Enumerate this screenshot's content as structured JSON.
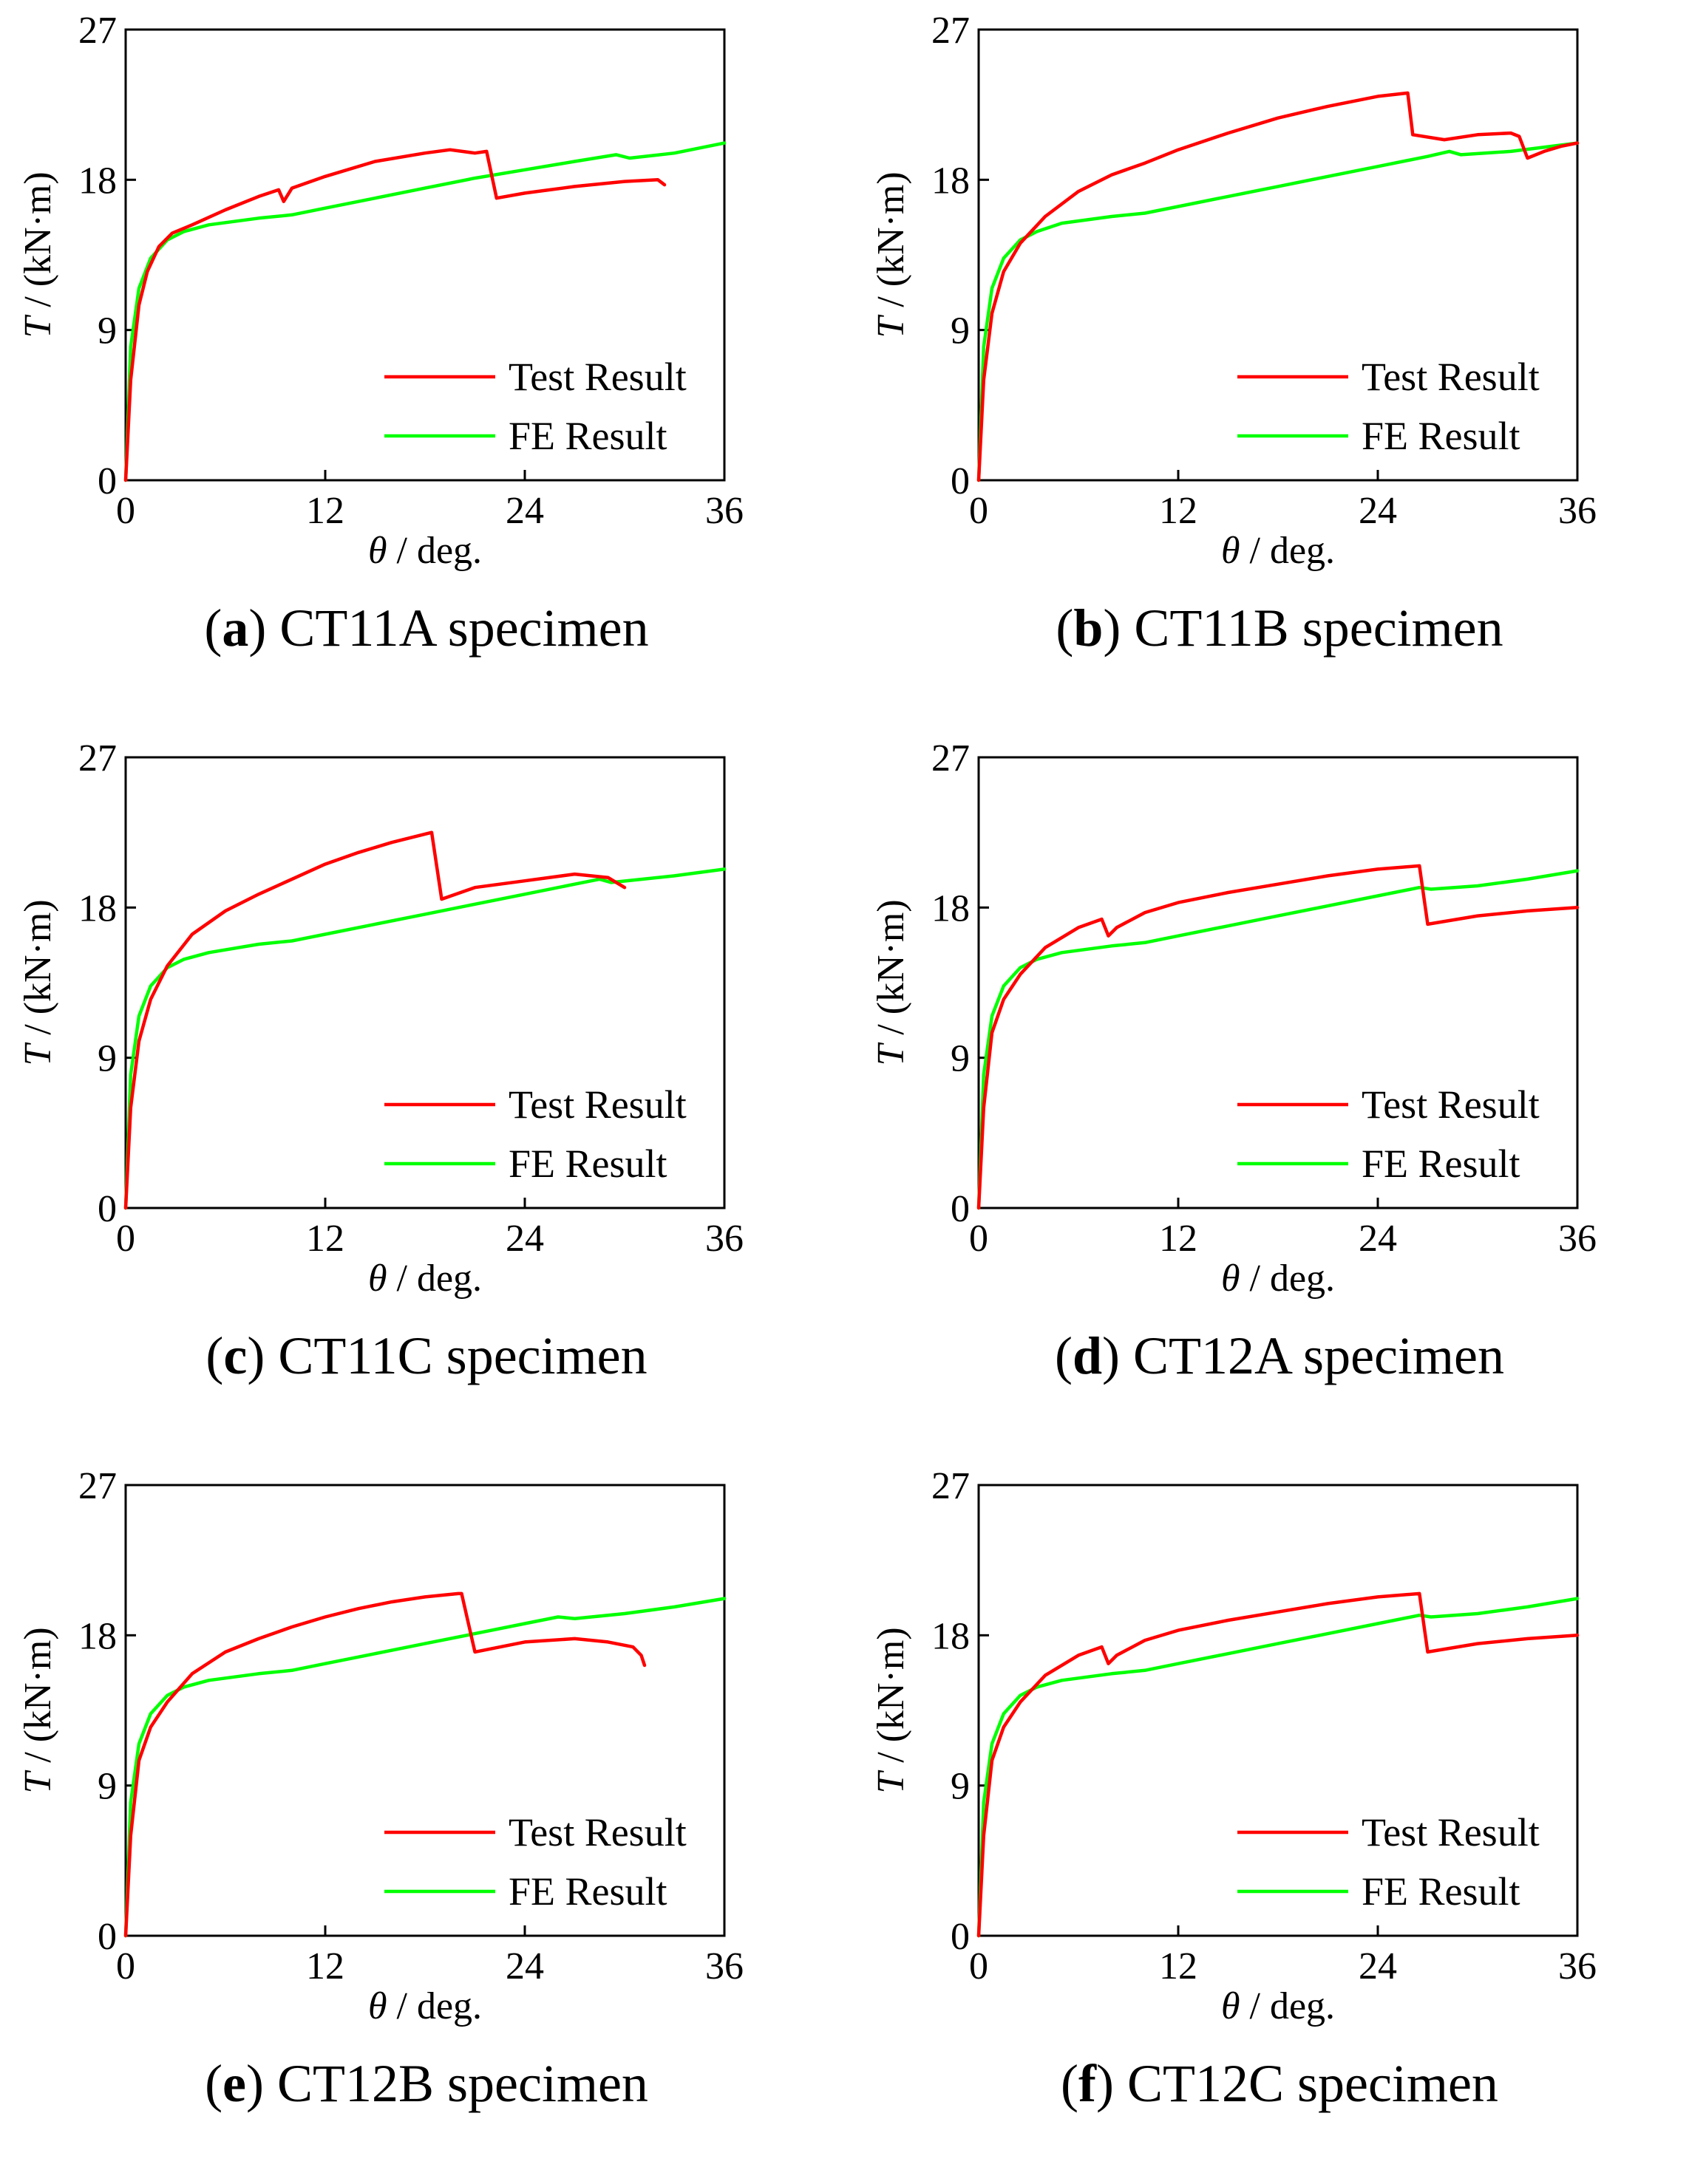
{
  "chart_data": [
    {
      "type": "line",
      "panel_letter": "a",
      "caption_text": "CT11A specimen",
      "xlabel_sym": "θ",
      "xlabel_rest": "/ deg.",
      "ylabel_sym": "T",
      "ylabel_rest": "/ (kN·m)",
      "xlim": [
        0,
        36
      ],
      "ylim": [
        0,
        27
      ],
      "xticks": [
        "0",
        "12",
        "24",
        "36"
      ],
      "yticks": [
        "0",
        "9",
        "18",
        "27"
      ],
      "legend_position": "bottom-right",
      "series": [
        {
          "name": "Test Result",
          "color": "#ff0000",
          "x": [
            0,
            0.3,
            0.8,
            1.3,
            2,
            2.8,
            4,
            6,
            8,
            9.2,
            9.5,
            10,
            12,
            15,
            18,
            19.5,
            21,
            21.7,
            22.3,
            24,
            27,
            30,
            32,
            32.4
          ],
          "y": [
            0,
            6,
            10.5,
            12.5,
            14,
            14.8,
            15.3,
            16.2,
            17,
            17.4,
            16.7,
            17.5,
            18.2,
            19.1,
            19.6,
            19.8,
            19.6,
            19.7,
            16.9,
            17.2,
            17.6,
            17.9,
            18,
            17.7
          ]
        },
        {
          "name": "FE Result",
          "color": "#00ff00",
          "x": [
            0,
            0.3,
            0.8,
            1.5,
            2.5,
            3.5,
            5,
            8,
            10,
            12,
            15,
            18,
            21,
            24,
            27,
            29.5,
            30.3,
            33,
            36
          ],
          "y": [
            0,
            8,
            11.5,
            13.3,
            14.4,
            14.9,
            15.3,
            15.7,
            15.9,
            16.3,
            16.9,
            17.5,
            18.1,
            18.6,
            19.1,
            19.5,
            19.3,
            19.6,
            20.2
          ]
        }
      ]
    },
    {
      "type": "line",
      "panel_letter": "b",
      "caption_text": "CT11B specimen",
      "xlabel_sym": "θ",
      "xlabel_rest": "/ deg.",
      "ylabel_sym": "T",
      "ylabel_rest": "/ (kN·m)",
      "xlim": [
        0,
        36
      ],
      "ylim": [
        0,
        27
      ],
      "xticks": [
        "0",
        "12",
        "24",
        "36"
      ],
      "yticks": [
        "0",
        "9",
        "18",
        "27"
      ],
      "legend_position": "bottom-right",
      "series": [
        {
          "name": "Test Result",
          "color": "#ff0000",
          "x": [
            0,
            0.3,
            0.8,
            1.5,
            2.5,
            4,
            6,
            8,
            10,
            12,
            15,
            18,
            21,
            24,
            25.8,
            26.1,
            28,
            30,
            32,
            32.5,
            33,
            34,
            35,
            36
          ],
          "y": [
            0,
            6,
            10,
            12.5,
            14.2,
            15.8,
            17.3,
            18.3,
            19,
            19.8,
            20.8,
            21.7,
            22.4,
            23,
            23.2,
            20.7,
            20.4,
            20.7,
            20.8,
            20.6,
            19.3,
            19.7,
            20,
            20.2
          ]
        },
        {
          "name": "FE Result",
          "color": "#00ff00",
          "x": [
            0,
            0.3,
            0.8,
            1.5,
            2.5,
            3.5,
            5,
            8,
            10,
            12,
            15,
            18,
            21,
            24,
            27,
            28.3,
            29,
            32,
            36
          ],
          "y": [
            0,
            8,
            11.5,
            13.3,
            14.4,
            14.9,
            15.4,
            15.8,
            16,
            16.4,
            17,
            17.6,
            18.2,
            18.8,
            19.4,
            19.7,
            19.5,
            19.7,
            20.2
          ]
        }
      ]
    },
    {
      "type": "line",
      "panel_letter": "c",
      "caption_text": "CT11C specimen",
      "xlabel_sym": "θ",
      "xlabel_rest": "/ deg.",
      "ylabel_sym": "T",
      "ylabel_rest": "/ (kN·m)",
      "xlim": [
        0,
        36
      ],
      "ylim": [
        0,
        27
      ],
      "xticks": [
        "0",
        "12",
        "24",
        "36"
      ],
      "yticks": [
        "0",
        "9",
        "18",
        "27"
      ],
      "legend_position": "bottom-right",
      "series": [
        {
          "name": "Test Result",
          "color": "#ff0000",
          "x": [
            0,
            0.3,
            0.8,
            1.5,
            2.5,
            4,
            6,
            8,
            10,
            12,
            14,
            16,
            18,
            18.4,
            19,
            21,
            24,
            27,
            29,
            30
          ],
          "y": [
            0,
            6,
            10,
            12.5,
            14.5,
            16.4,
            17.8,
            18.8,
            19.7,
            20.6,
            21.3,
            21.9,
            22.4,
            22.5,
            18.5,
            19.2,
            19.6,
            20,
            19.8,
            19.2
          ]
        },
        {
          "name": "FE Result",
          "color": "#00ff00",
          "x": [
            0,
            0.3,
            0.8,
            1.5,
            2.5,
            3.5,
            5,
            8,
            10,
            12,
            15,
            18,
            21,
            24,
            27,
            28.5,
            29.2,
            33,
            36
          ],
          "y": [
            0,
            8,
            11.5,
            13.3,
            14.4,
            14.9,
            15.3,
            15.8,
            16,
            16.4,
            17,
            17.6,
            18.2,
            18.8,
            19.4,
            19.7,
            19.5,
            19.9,
            20.3
          ]
        }
      ]
    },
    {
      "type": "line",
      "panel_letter": "d",
      "caption_text": "CT12A specimen",
      "xlabel_sym": "θ",
      "xlabel_rest": "/ deg.",
      "ylabel_sym": "T",
      "ylabel_rest": "/ (kN·m)",
      "xlim": [
        0,
        36
      ],
      "ylim": [
        0,
        27
      ],
      "xticks": [
        "0",
        "12",
        "24",
        "36"
      ],
      "yticks": [
        "0",
        "9",
        "18",
        "27"
      ],
      "legend_position": "bottom-right",
      "series": [
        {
          "name": "Test Result",
          "color": "#ff0000",
          "x": [
            0,
            0.3,
            0.8,
            1.5,
            2.5,
            4,
            6,
            7.4,
            7.8,
            8.3,
            10,
            12,
            15,
            18,
            21,
            24,
            26.5,
            27,
            30,
            33,
            36
          ],
          "y": [
            0,
            6,
            10.5,
            12.5,
            14,
            15.6,
            16.8,
            17.3,
            16.3,
            16.8,
            17.7,
            18.3,
            18.9,
            19.4,
            19.9,
            20.3,
            20.5,
            17,
            17.5,
            17.8,
            18
          ]
        },
        {
          "name": "FE Result",
          "color": "#00ff00",
          "x": [
            0,
            0.3,
            0.8,
            1.5,
            2.5,
            3.5,
            5,
            8,
            10,
            12,
            15,
            18,
            21,
            24,
            26.5,
            27.2,
            30,
            33,
            36
          ],
          "y": [
            0,
            8,
            11.5,
            13.3,
            14.4,
            14.9,
            15.3,
            15.7,
            15.9,
            16.3,
            16.9,
            17.5,
            18.1,
            18.7,
            19.2,
            19.1,
            19.3,
            19.7,
            20.2
          ]
        }
      ]
    },
    {
      "type": "line",
      "panel_letter": "e",
      "caption_text": "CT12B specimen",
      "xlabel_sym": "θ",
      "xlabel_rest": "/ deg.",
      "ylabel_sym": "T",
      "ylabel_rest": "/ (kN·m)",
      "xlim": [
        0,
        36
      ],
      "ylim": [
        0,
        27
      ],
      "xticks": [
        "0",
        "12",
        "24",
        "36"
      ],
      "yticks": [
        "0",
        "9",
        "18",
        "27"
      ],
      "legend_position": "bottom-right",
      "series": [
        {
          "name": "Test Result",
          "color": "#ff0000",
          "x": [
            0,
            0.3,
            0.8,
            1.5,
            2.5,
            4,
            6,
            8,
            10,
            12,
            14,
            16,
            18,
            20,
            20.2,
            21,
            24,
            27,
            29,
            30.5,
            31,
            31.2
          ],
          "y": [
            0,
            6,
            10.5,
            12.5,
            14,
            15.7,
            17,
            17.8,
            18.5,
            19.1,
            19.6,
            20,
            20.3,
            20.5,
            20.5,
            17,
            17.6,
            17.8,
            17.6,
            17.3,
            16.8,
            16.2
          ]
        },
        {
          "name": "FE Result",
          "color": "#00ff00",
          "x": [
            0,
            0.3,
            0.8,
            1.5,
            2.5,
            3.5,
            5,
            8,
            10,
            12,
            15,
            18,
            21,
            24,
            26,
            27,
            30,
            33,
            36
          ],
          "y": [
            0,
            8,
            11.5,
            13.3,
            14.4,
            14.9,
            15.3,
            15.7,
            15.9,
            16.3,
            16.9,
            17.5,
            18.1,
            18.7,
            19.1,
            19,
            19.3,
            19.7,
            20.2
          ]
        }
      ]
    },
    {
      "type": "line",
      "panel_letter": "f",
      "caption_text": "CT12C specimen",
      "xlabel_sym": "θ",
      "xlabel_rest": "/ deg.",
      "ylabel_sym": "T",
      "ylabel_rest": "/ (kN·m)",
      "xlim": [
        0,
        36
      ],
      "ylim": [
        0,
        27
      ],
      "xticks": [
        "0",
        "12",
        "24",
        "36"
      ],
      "yticks": [
        "0",
        "9",
        "18",
        "27"
      ],
      "legend_position": "bottom-right",
      "series": [
        {
          "name": "Test Result",
          "color": "#ff0000",
          "x": [
            0,
            0.3,
            0.8,
            1.5,
            2.5,
            4,
            6,
            7.4,
            7.8,
            8.3,
            10,
            12,
            15,
            18,
            21,
            24,
            26.5,
            27,
            30,
            33,
            36
          ],
          "y": [
            0,
            6,
            10.5,
            12.5,
            14,
            15.6,
            16.8,
            17.3,
            16.3,
            16.8,
            17.7,
            18.3,
            18.9,
            19.4,
            19.9,
            20.3,
            20.5,
            17,
            17.5,
            17.8,
            18
          ]
        },
        {
          "name": "FE Result",
          "color": "#00ff00",
          "x": [
            0,
            0.3,
            0.8,
            1.5,
            2.5,
            3.5,
            5,
            8,
            10,
            12,
            15,
            18,
            21,
            24,
            26.5,
            27.2,
            30,
            33,
            36
          ],
          "y": [
            0,
            8,
            11.5,
            13.3,
            14.4,
            14.9,
            15.3,
            15.7,
            15.9,
            16.3,
            16.9,
            17.5,
            18.1,
            18.7,
            19.2,
            19.1,
            19.3,
            19.7,
            20.2
          ]
        }
      ]
    }
  ]
}
